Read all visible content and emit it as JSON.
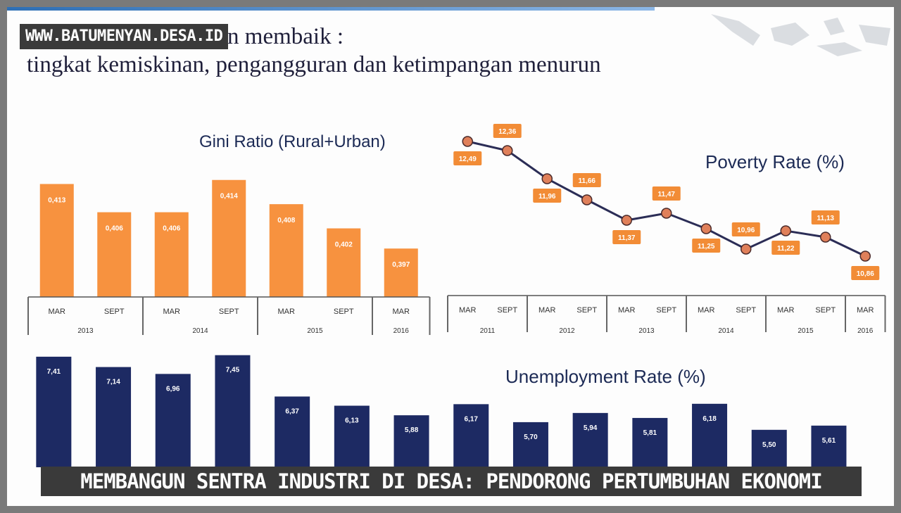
{
  "heading": {
    "line1": "Kondisi perekonomian membaik :",
    "line2": "tingkat kemiskinan, pengangguran dan ketimpangan menurun"
  },
  "watermark": "WWW.BATUMENYAN.DESA.ID",
  "banner": "MEMBANGUN SENTRA INDUSTRI DI DESA: PENDORONG PERTUMBUHAN EKONOMI",
  "colors": {
    "gini": "#f7923f",
    "poverty_line": "#2b2d56",
    "poverty_marker": "#e0805a",
    "poverty_label": "#f28c36",
    "unemployment": "#1d2a63"
  },
  "chart_data": [
    {
      "type": "bar",
      "title": "Gini Ratio (Rural+Urban)",
      "categories": [
        "MAR",
        "SEPT",
        "MAR",
        "SEPT",
        "MAR",
        "SEPT",
        "MAR"
      ],
      "groups": [
        {
          "label": "2013",
          "span": 2
        },
        {
          "label": "2014",
          "span": 2
        },
        {
          "label": "2015",
          "span": 2
        },
        {
          "label": "2016",
          "span": 1
        }
      ],
      "values": [
        0.413,
        0.406,
        0.406,
        0.414,
        0.408,
        0.402,
        0.397
      ],
      "labels": [
        "0,413",
        "0,406",
        "0,406",
        "0,414",
        "0,408",
        "0,402",
        "0,397"
      ],
      "ylim": [
        0.385,
        0.415
      ]
    },
    {
      "type": "line",
      "title": "Poverty Rate (%)",
      "categories": [
        "MAR",
        "SEPT",
        "MAR",
        "SEPT",
        "MAR",
        "SEPT",
        "MAR",
        "SEPT",
        "MAR",
        "SEPT",
        "MAR"
      ],
      "groups": [
        {
          "label": "2011",
          "span": 2
        },
        {
          "label": "2012",
          "span": 2
        },
        {
          "label": "2013",
          "span": 2
        },
        {
          "label": "2014",
          "span": 2
        },
        {
          "label": "2015",
          "span": 2
        },
        {
          "label": "2016",
          "span": 1
        }
      ],
      "values": [
        12.49,
        12.36,
        11.96,
        11.66,
        11.37,
        11.47,
        11.25,
        10.96,
        11.22,
        11.13,
        10.86
      ],
      "labels": [
        "12,49",
        "12,36",
        "11,96",
        "11,66",
        "11,37",
        "11,47",
        "11,25",
        "10,96",
        "11,22",
        "11,13",
        "10,86"
      ],
      "ylim": [
        10.5,
        12.6
      ]
    },
    {
      "type": "bar",
      "title": "Unemployment Rate (%)",
      "values": [
        7.41,
        7.14,
        6.96,
        7.45,
        6.37,
        6.13,
        5.88,
        6.17,
        5.7,
        5.94,
        5.81,
        6.18,
        5.5,
        5.61
      ],
      "labels": [
        "7,41",
        "7,14",
        "6,96",
        "7,45",
        "6,37",
        "6,13",
        "5,88",
        "6,17",
        "5,70",
        "5,94",
        "5,81",
        "6,18",
        "5,50",
        "5,61"
      ],
      "ylim": [
        5.0,
        7.5
      ]
    }
  ]
}
